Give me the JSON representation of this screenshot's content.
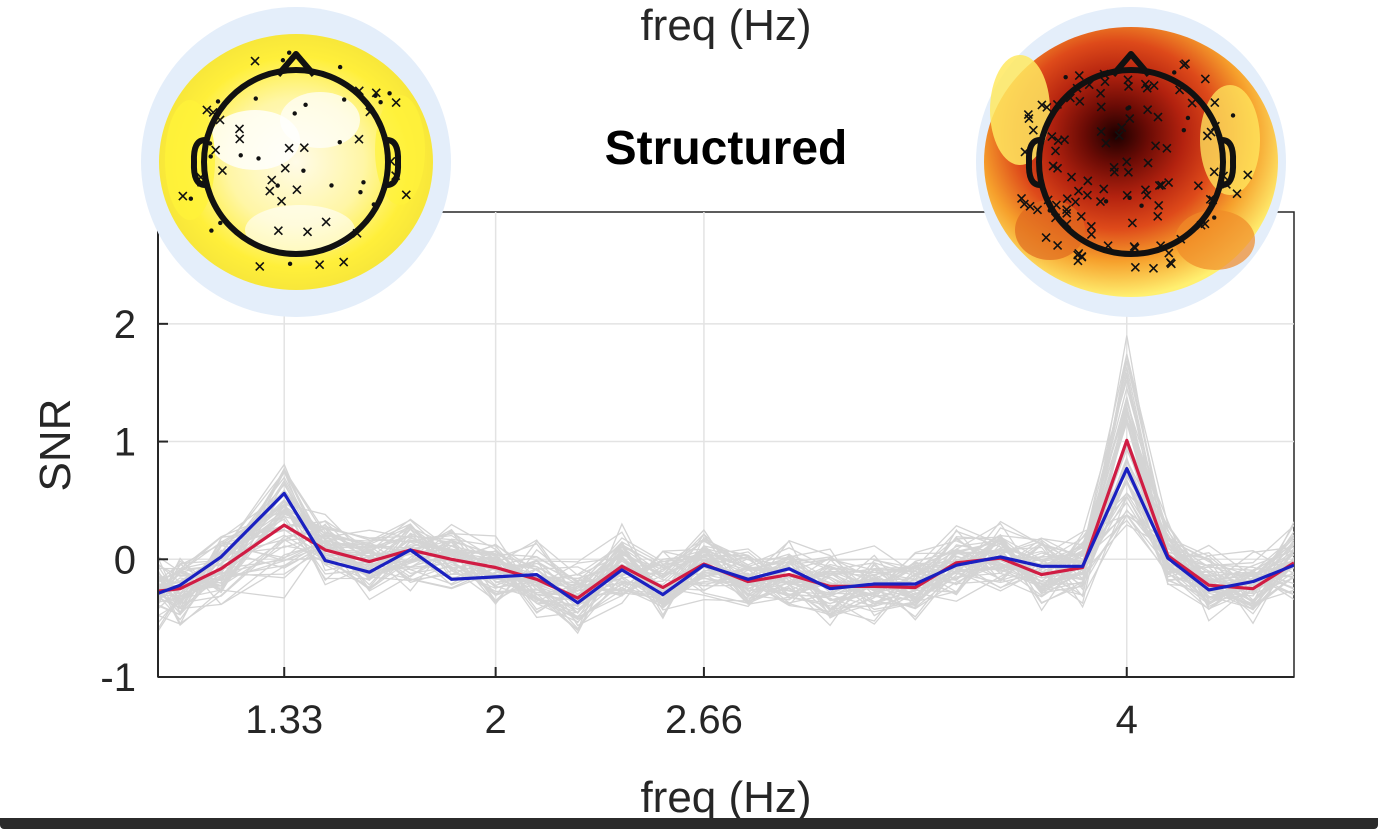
{
  "figure": {
    "top_label": "freq (Hz)"
  },
  "chart_data": {
    "type": "line",
    "title": "Structured",
    "xlabel": "freq (Hz)",
    "ylabel": "SNR",
    "x_ticks": [
      1.33,
      2,
      2.66,
      4
    ],
    "x_tick_labels": [
      "1.33",
      "2",
      "2.66",
      "4"
    ],
    "y_ticks": [
      -1,
      0,
      1,
      2
    ],
    "y_tick_labels": [
      "-1",
      "0",
      "1",
      "2"
    ],
    "xlim": [
      0.93,
      4.53
    ],
    "ylim": [
      -1,
      2.95
    ],
    "grid": true,
    "x": [
      0.93,
      1.0,
      1.13,
      1.33,
      1.46,
      1.6,
      1.73,
      1.86,
      2.0,
      2.13,
      2.26,
      2.4,
      2.53,
      2.66,
      2.8,
      2.93,
      3.06,
      3.2,
      3.33,
      3.46,
      3.6,
      3.73,
      3.86,
      4.0,
      4.13,
      4.26,
      4.4,
      4.53
    ],
    "series": [
      {
        "color": "#d01c43",
        "values": [
          -0.27,
          -0.25,
          -0.08,
          0.29,
          0.08,
          -0.02,
          0.08,
          0.0,
          -0.07,
          -0.17,
          -0.33,
          -0.06,
          -0.24,
          -0.04,
          -0.19,
          -0.13,
          -0.23,
          -0.23,
          -0.24,
          -0.03,
          0.01,
          -0.13,
          -0.07,
          1.01,
          0.03,
          -0.22,
          -0.25,
          -0.03
        ]
      },
      {
        "color": "#1a20c0",
        "values": [
          -0.29,
          -0.22,
          0.02,
          0.56,
          -0.01,
          -0.11,
          0.08,
          -0.17,
          -0.15,
          -0.13,
          -0.37,
          -0.09,
          -0.3,
          -0.05,
          -0.17,
          -0.08,
          -0.25,
          -0.21,
          -0.21,
          -0.05,
          0.02,
          -0.06,
          -0.06,
          0.77,
          0.01,
          -0.26,
          -0.19,
          -0.05
        ]
      }
    ],
    "background_traces": {
      "color": "#d4d4d4",
      "count": 60
    },
    "topoplots": [
      {
        "anchor_x": 1.33,
        "colormap": "yellow-white"
      },
      {
        "anchor_x": 4.0,
        "colormap": "black-red-yellow"
      }
    ]
  }
}
